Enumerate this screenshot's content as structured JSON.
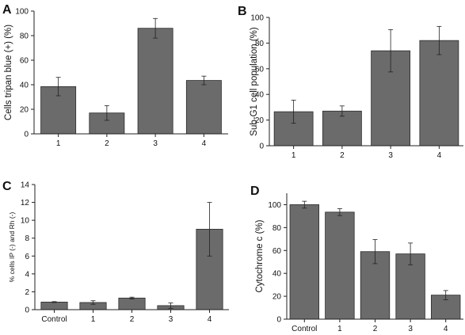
{
  "chart_data": [
    {
      "panel": "A",
      "type": "bar",
      "categories": [
        "1",
        "2",
        "3",
        "4"
      ],
      "values": [
        38.5,
        17,
        86,
        43.5
      ],
      "errors": [
        7.5,
        6,
        8,
        3.5
      ],
      "ylabel": "Cells tripan blue (+) (%)",
      "xlabel": "",
      "ylim": [
        0,
        100
      ],
      "yticks": [
        0,
        20,
        40,
        60,
        80,
        100
      ],
      "bar_color": "#6b6b6b"
    },
    {
      "panel": "B",
      "type": "bar",
      "categories": [
        "1",
        "2",
        "3",
        "4"
      ],
      "values": [
        26.5,
        27,
        74,
        82
      ],
      "errors": [
        9,
        4,
        16.5,
        11
      ],
      "ylabel": "Sub-G1 cell population (%)",
      "xlabel": "",
      "ylim": [
        0,
        100
      ],
      "yticks": [
        0,
        20,
        40,
        60,
        80,
        100
      ],
      "bar_color": "#6b6b6b"
    },
    {
      "panel": "C",
      "type": "bar",
      "categories": [
        "Control",
        "1",
        "2",
        "3",
        "4"
      ],
      "values": [
        0.85,
        0.8,
        1.3,
        0.45,
        9
      ],
      "errors": [
        0.05,
        0.2,
        0.1,
        0.3,
        3
      ],
      "ylabel": "% cells IP (-) and Rh (-)",
      "xlabel": "",
      "ylim": [
        0,
        14
      ],
      "yticks": [
        0,
        2,
        4,
        6,
        8,
        10,
        12,
        14
      ],
      "bar_color": "#6b6b6b"
    },
    {
      "panel": "D",
      "type": "bar",
      "categories": [
        "Control",
        "1",
        "2",
        "3",
        "4"
      ],
      "values": [
        100,
        93.5,
        59,
        57,
        21
      ],
      "errors": [
        3,
        3,
        10.5,
        9.5,
        4
      ],
      "ylabel": "Cytochrome c (%)",
      "xlabel": "",
      "ylim": [
        0,
        110
      ],
      "yticks": [
        0,
        20,
        40,
        60,
        80,
        100
      ],
      "bar_color": "#6b6b6b"
    }
  ]
}
